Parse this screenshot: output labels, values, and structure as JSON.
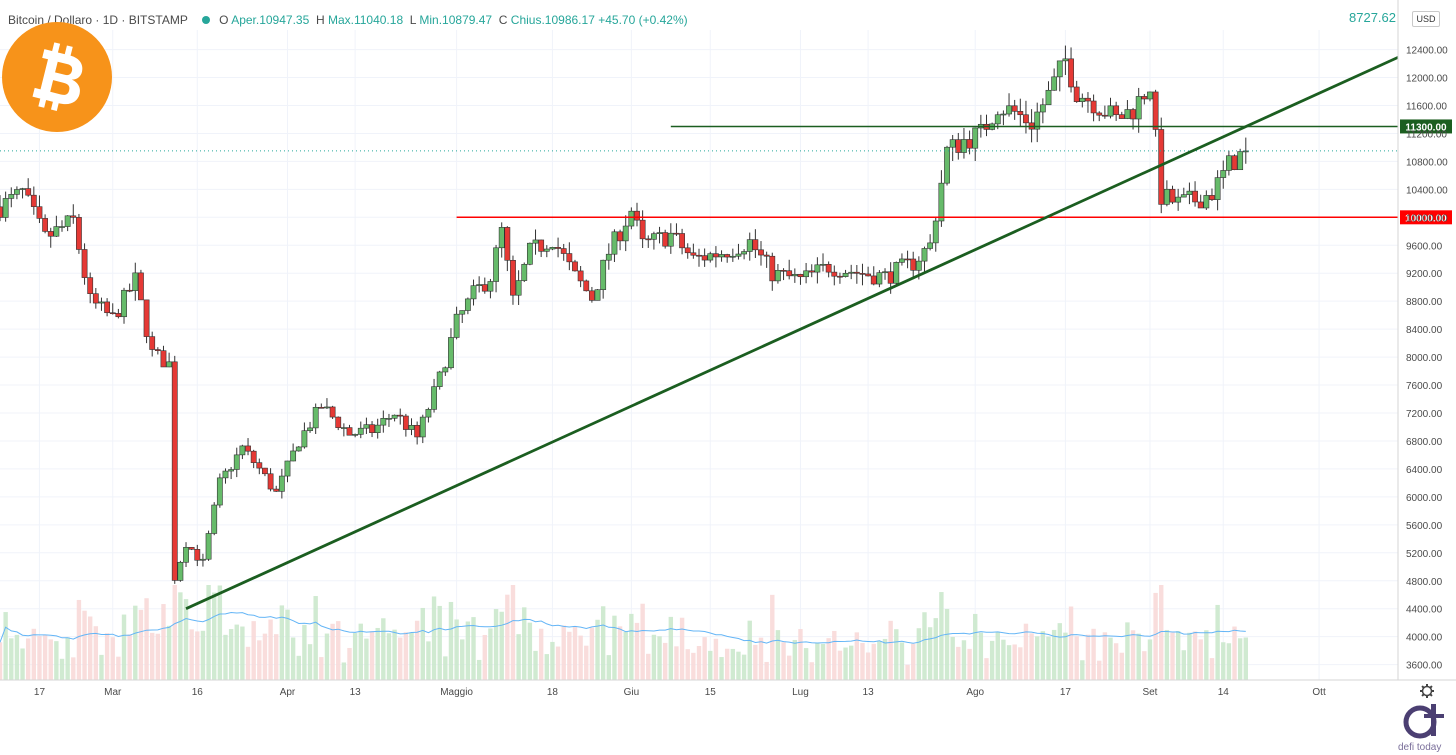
{
  "header": {
    "symbol": "Bitcoin / Dollaro · 1D · BITSTAMP",
    "open_label": "O",
    "open_text": "Aper.10947.35",
    "high_label": "H",
    "high_text": "Max.11040.18",
    "low_label": "L",
    "low_text": "Min.10879.47",
    "close_label": "C",
    "close_text": "Chius.10986.17",
    "change_text": "+45.70 (+0.42%)"
  },
  "currency": "USD",
  "top_value": "8727.62",
  "brand": {
    "text": "defi today"
  },
  "colors": {
    "up": "#26a69a",
    "down": "#ef5350",
    "support": "#ff0000",
    "resistance": "#1b5e20",
    "trendline": "#1b5e20",
    "volume_ma": "#64b5f6"
  },
  "icons": {
    "logo": "bitcoin-logo-icon",
    "settings": "gear-icon",
    "brand": "defi-today-logo-icon"
  },
  "chart_data": {
    "type": "candlestick",
    "y_axis": {
      "min": 3380,
      "max": 12680,
      "ticks": [
        3600,
        4000,
        4400,
        4800,
        5200,
        5600,
        6000,
        6400,
        6800,
        7200,
        7600,
        8000,
        8400,
        8800,
        9200,
        9600,
        10000,
        10400,
        10800,
        11200,
        11600,
        12000,
        12400
      ],
      "tick_labels": [
        "3600.00",
        "4000.00",
        "4400.00",
        "4800.00",
        "5200.00",
        "5600.00",
        "6000.00",
        "6400.00",
        "6800.00",
        "7200.00",
        "7600.00",
        "8000.00",
        "8400.00",
        "8800.00",
        "9200.00",
        "9600.00",
        "10000.00",
        "10400.00",
        "10800.00",
        "11200.00",
        "11600.00",
        "12000.00",
        "12400.00"
      ]
    },
    "x_axis": {
      "start": "2020-02-10",
      "end": "2020-10-15",
      "ticks": [
        {
          "date": "2020-02-17",
          "label": "17"
        },
        {
          "date": "2020-03-01",
          "label": "Mar"
        },
        {
          "date": "2020-03-16",
          "label": "16"
        },
        {
          "date": "2020-04-01",
          "label": "Apr"
        },
        {
          "date": "2020-04-13",
          "label": "13"
        },
        {
          "date": "2020-05-01",
          "label": "Maggio"
        },
        {
          "date": "2020-05-18",
          "label": "18"
        },
        {
          "date": "2020-06-01",
          "label": "Giu"
        },
        {
          "date": "2020-06-15",
          "label": "15"
        },
        {
          "date": "2020-07-01",
          "label": "Lug"
        },
        {
          "date": "2020-07-13",
          "label": "13"
        },
        {
          "date": "2020-08-01",
          "label": "Ago"
        },
        {
          "date": "2020-08-17",
          "label": "17"
        },
        {
          "date": "2020-09-01",
          "label": "Set"
        },
        {
          "date": "2020-09-14",
          "label": "14"
        },
        {
          "date": "2020-10-01",
          "label": "Ott"
        }
      ]
    },
    "anchors": [
      {
        "date": "2020-02-10",
        "close": 10150
      },
      {
        "date": "2020-02-14",
        "close": 10350
      },
      {
        "date": "2020-02-18",
        "close": 9700
      },
      {
        "date": "2020-02-23",
        "close": 9950
      },
      {
        "date": "2020-02-26",
        "close": 8800
      },
      {
        "date": "2020-03-01",
        "close": 8550
      },
      {
        "date": "2020-03-05",
        "close": 9100
      },
      {
        "date": "2020-03-08",
        "close": 8050
      },
      {
        "date": "2020-03-11",
        "close": 7900
      },
      {
        "date": "2020-03-12",
        "close": 4850
      },
      {
        "date": "2020-03-14",
        "close": 5350
      },
      {
        "date": "2020-03-17",
        "close": 5050
      },
      {
        "date": "2020-03-20",
        "close": 6200
      },
      {
        "date": "2020-03-24",
        "close": 6700
      },
      {
        "date": "2020-03-27",
        "close": 6400
      },
      {
        "date": "2020-03-30",
        "close": 6050
      },
      {
        "date": "2020-04-03",
        "close": 6800
      },
      {
        "date": "2020-04-07",
        "close": 7300
      },
      {
        "date": "2020-04-12",
        "close": 6900
      },
      {
        "date": "2020-04-16",
        "close": 6950
      },
      {
        "date": "2020-04-20",
        "close": 7200
      },
      {
        "date": "2020-04-24",
        "close": 6850
      },
      {
        "date": "2020-04-28",
        "close": 7700
      },
      {
        "date": "2020-05-01",
        "close": 8500
      },
      {
        "date": "2020-05-04",
        "close": 8900
      },
      {
        "date": "2020-05-07",
        "close": 9150
      },
      {
        "date": "2020-05-09",
        "close": 9800
      },
      {
        "date": "2020-05-11",
        "close": 8800
      },
      {
        "date": "2020-05-14",
        "close": 9500
      },
      {
        "date": "2020-05-18",
        "close": 9700
      },
      {
        "date": "2020-05-22",
        "close": 9150
      },
      {
        "date": "2020-05-25",
        "close": 8850
      },
      {
        "date": "2020-05-28",
        "close": 9500
      },
      {
        "date": "2020-06-01",
        "close": 10100
      },
      {
        "date": "2020-06-03",
        "close": 9600
      },
      {
        "date": "2020-06-08",
        "close": 9750
      },
      {
        "date": "2020-06-12",
        "close": 9400
      },
      {
        "date": "2020-06-17",
        "close": 9500
      },
      {
        "date": "2020-06-22",
        "close": 9650
      },
      {
        "date": "2020-06-26",
        "close": 9200
      },
      {
        "date": "2020-07-01",
        "close": 9100
      },
      {
        "date": "2020-07-06",
        "close": 9300
      },
      {
        "date": "2020-07-12",
        "close": 9200
      },
      {
        "date": "2020-07-16",
        "close": 9150
      },
      {
        "date": "2020-07-21",
        "close": 9350
      },
      {
        "date": "2020-07-24",
        "close": 9600
      },
      {
        "date": "2020-07-27",
        "close": 10950
      },
      {
        "date": "2020-07-30",
        "close": 11100
      },
      {
        "date": "2020-08-02",
        "close": 11200
      },
      {
        "date": "2020-08-05",
        "close": 11600
      },
      {
        "date": "2020-08-08",
        "close": 11500
      },
      {
        "date": "2020-08-11",
        "close": 11350
      },
      {
        "date": "2020-08-14",
        "close": 11750
      },
      {
        "date": "2020-08-17",
        "close": 12250
      },
      {
        "date": "2020-08-19",
        "close": 11800
      },
      {
        "date": "2020-08-22",
        "close": 11650
      },
      {
        "date": "2020-08-26",
        "close": 11400
      },
      {
        "date": "2020-08-29",
        "close": 11550
      },
      {
        "date": "2020-09-01",
        "close": 11900
      },
      {
        "date": "2020-09-03",
        "close": 10300
      },
      {
        "date": "2020-09-06",
        "close": 10200
      },
      {
        "date": "2020-09-09",
        "close": 10250
      },
      {
        "date": "2020-09-12",
        "close": 10350
      },
      {
        "date": "2020-09-15",
        "close": 10750
      },
      {
        "date": "2020-09-18",
        "close": 10950
      }
    ],
    "horizontal_lines": [
      {
        "name": "support",
        "value": 10000,
        "label": "10000.00",
        "from": "2020-05-01"
      },
      {
        "name": "resistance",
        "value": 11300,
        "label": "11300.00",
        "from": "2020-06-08"
      }
    ],
    "trendline": {
      "from": {
        "date": "2020-03-14",
        "value": 4400
      },
      "through": {
        "date": "2020-07-25",
        "value": 9280
      }
    },
    "volume": {
      "unit": "relative",
      "moving_average": true
    }
  }
}
